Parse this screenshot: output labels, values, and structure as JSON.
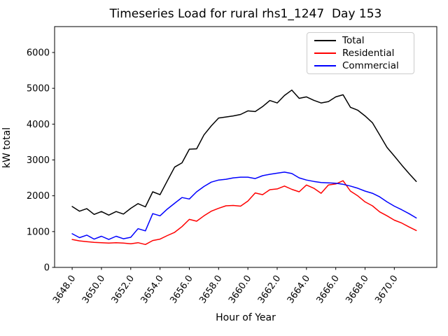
{
  "title": "Timeseries Load for rural rhs1_1247  Day 153",
  "chart_data": {
    "type": "line",
    "title": "Timeseries Load for rural rhs1_1247  Day 153",
    "xlabel": "Hour of Year",
    "ylabel": "kW total",
    "xlim": [
      3646.8,
      3672.9
    ],
    "ylim": [
      0,
      6723
    ],
    "grid": false,
    "legend_position": "upper right",
    "xticks": [
      3648,
      3650,
      3652,
      3654,
      3656,
      3658,
      3660,
      3662,
      3664,
      3666,
      3668,
      3670
    ],
    "xtick_labels": [
      "3648.0",
      "3650.0",
      "3652.0",
      "3654.0",
      "3656.0",
      "3658.0",
      "3660.0",
      "3662.0",
      "3664.0",
      "3666.0",
      "3668.0",
      "3670.0"
    ],
    "yticks": [
      0,
      1000,
      2000,
      3000,
      4000,
      5000,
      6000
    ],
    "ytick_labels": [
      "0",
      "1000",
      "2000",
      "3000",
      "4000",
      "5000",
      "6000"
    ],
    "x_start": 3648.0,
    "x_step": 0.5,
    "series": [
      {
        "name": "Total",
        "color": "#000000",
        "values": [
          1700,
          1570,
          1640,
          1480,
          1560,
          1460,
          1560,
          1490,
          1650,
          1780,
          1690,
          2110,
          2030,
          2420,
          2800,
          2920,
          3300,
          3310,
          3700,
          3950,
          4170,
          4200,
          4230,
          4270,
          4370,
          4350,
          4490,
          4660,
          4590,
          4800,
          4950,
          4720,
          4760,
          4665,
          4590,
          4630,
          4760,
          4820,
          4470,
          4390,
          4230,
          4040,
          3700,
          3350,
          3110,
          2860,
          2620,
          2400
        ]
      },
      {
        "name": "Residential",
        "color": "#ff0000",
        "values": [
          780,
          740,
          720,
          700,
          690,
          680,
          690,
          680,
          660,
          690,
          640,
          750,
          790,
          890,
          980,
          1140,
          1340,
          1290,
          1440,
          1570,
          1650,
          1720,
          1730,
          1710,
          1850,
          2080,
          2030,
          2170,
          2190,
          2270,
          2180,
          2110,
          2300,
          2210,
          2070,
          2300,
          2330,
          2420,
          2130,
          2000,
          1830,
          1720,
          1550,
          1440,
          1320,
          1240,
          1130,
          1030
        ]
      },
      {
        "name": "Commercial",
        "color": "#0000ff",
        "values": [
          940,
          830,
          900,
          790,
          870,
          780,
          870,
          800,
          840,
          1080,
          1020,
          1500,
          1440,
          1630,
          1790,
          1950,
          1910,
          2110,
          2260,
          2380,
          2440,
          2460,
          2500,
          2520,
          2520,
          2480,
          2560,
          2600,
          2630,
          2660,
          2620,
          2500,
          2440,
          2400,
          2370,
          2360,
          2350,
          2320,
          2270,
          2210,
          2130,
          2070,
          1970,
          1830,
          1710,
          1610,
          1500,
          1380
        ]
      }
    ]
  },
  "legend": {
    "items": [
      {
        "label": "Total",
        "color": "#000000"
      },
      {
        "label": "Residential",
        "color": "#ff0000"
      },
      {
        "label": "Commercial",
        "color": "#0000ff"
      }
    ]
  }
}
